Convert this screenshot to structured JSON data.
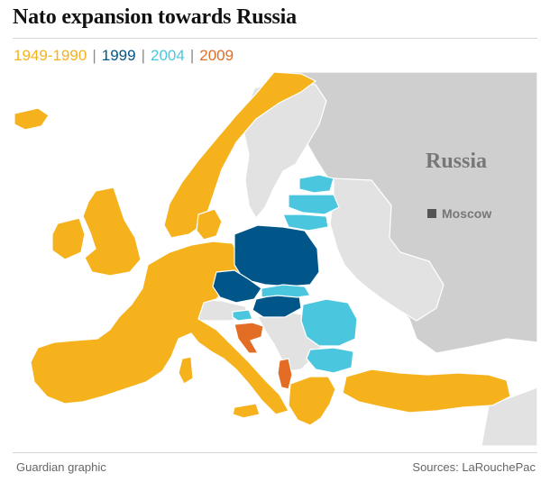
{
  "title": "Nato expansion towards Russia",
  "legend": [
    {
      "label": "1949-1990",
      "color": "#f5b21d"
    },
    {
      "label": "1999",
      "color": "#005689"
    },
    {
      "label": "2004",
      "color": "#4bc6df"
    },
    {
      "label": "2009",
      "color": "#e36d25"
    }
  ],
  "legend_separator": "|",
  "map_labels": {
    "russia": "Russia",
    "moscow": "Moscow"
  },
  "colors": {
    "land": "#e2e2e2",
    "russia": "#cfcfcf",
    "sea": "#ffffff",
    "borders": "#ffffff",
    "label_text": "#777777",
    "capital_marker": "#555555"
  },
  "footer": {
    "credit": "Guardian graphic",
    "sources": "Sources: LaRouchePac"
  }
}
